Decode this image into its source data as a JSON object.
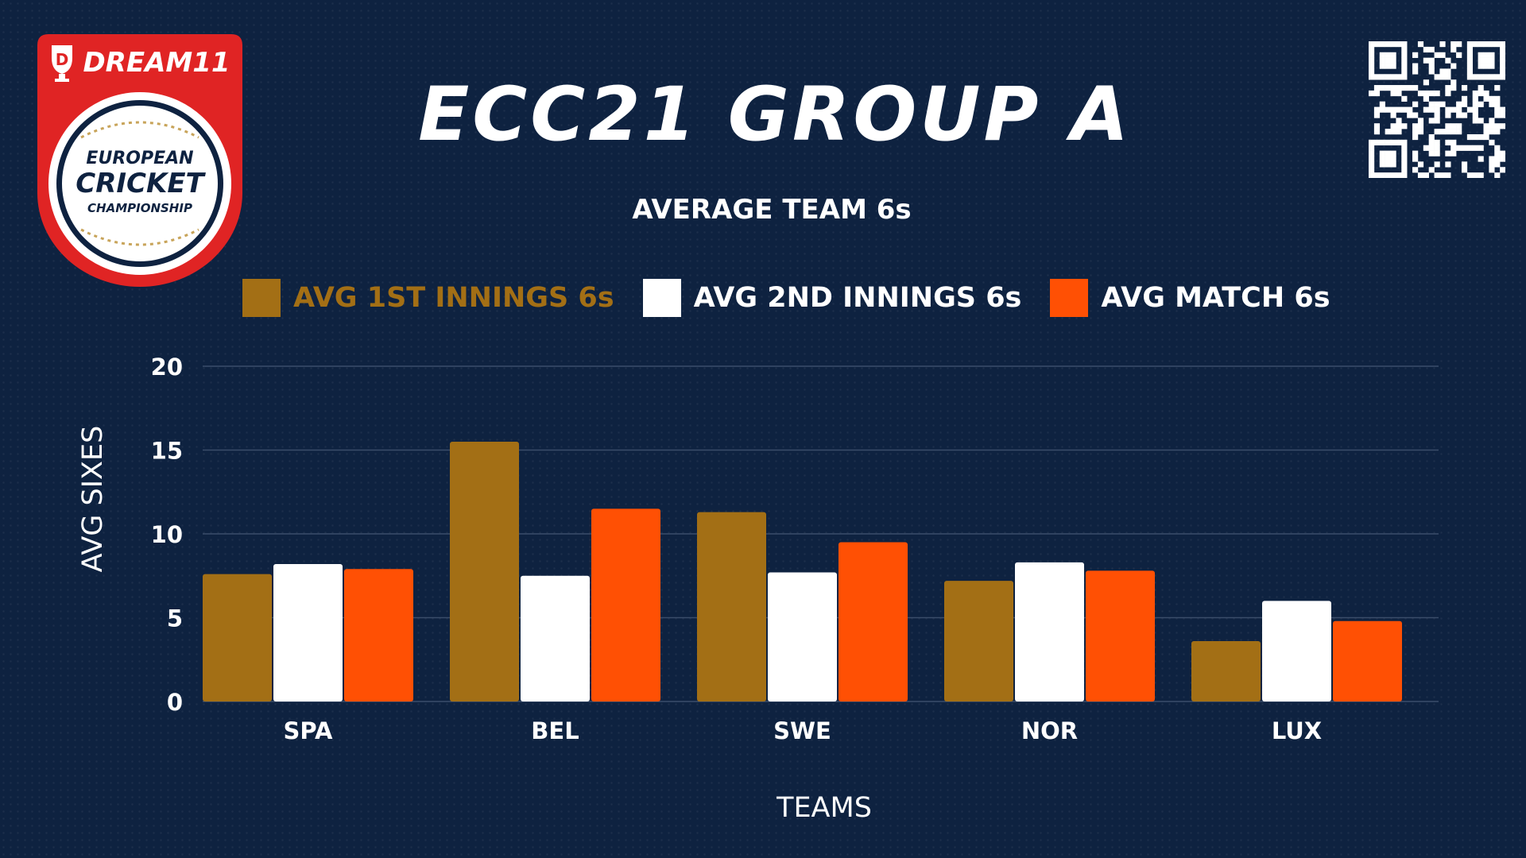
{
  "branding": {
    "sponsor": "DREAM11",
    "logo_lines": [
      "EUROPEAN",
      "CRICKET",
      "CHAMPIONSHIP"
    ]
  },
  "header": {
    "title": "ECC21 GROUP A",
    "subtitle": "AVERAGE TEAM 6s"
  },
  "colors": {
    "background": "#0e2240",
    "first_innings": "#a36f15",
    "second_innings": "#ffffff",
    "match": "#ff5004",
    "grid": "#3a4d6a",
    "logo_red": "#e02424"
  },
  "icons": {
    "qr": "qr-code-icon",
    "logo": "ecc-logo-icon"
  },
  "chart_data": {
    "type": "bar",
    "title": "AVERAGE TEAM 6s",
    "xlabel": "TEAMS",
    "ylabel": "AVG SIXES",
    "ylim": [
      0,
      20
    ],
    "yticks": [
      0,
      5,
      10,
      15,
      20
    ],
    "grid": true,
    "legend_position": "top",
    "categories": [
      "SPA",
      "BEL",
      "SWE",
      "NOR",
      "LUX"
    ],
    "series": [
      {
        "name": "AVG 1ST INNINGS 6s",
        "color": "#a36f15",
        "values": [
          7.6,
          15.5,
          11.3,
          7.2,
          3.6
        ]
      },
      {
        "name": "AVG 2ND INNINGS 6s",
        "color": "#ffffff",
        "values": [
          8.2,
          7.5,
          7.7,
          8.3,
          6.0
        ]
      },
      {
        "name": "AVG MATCH 6s",
        "color": "#ff5004",
        "values": [
          7.9,
          11.5,
          9.5,
          7.8,
          4.8
        ]
      }
    ]
  }
}
